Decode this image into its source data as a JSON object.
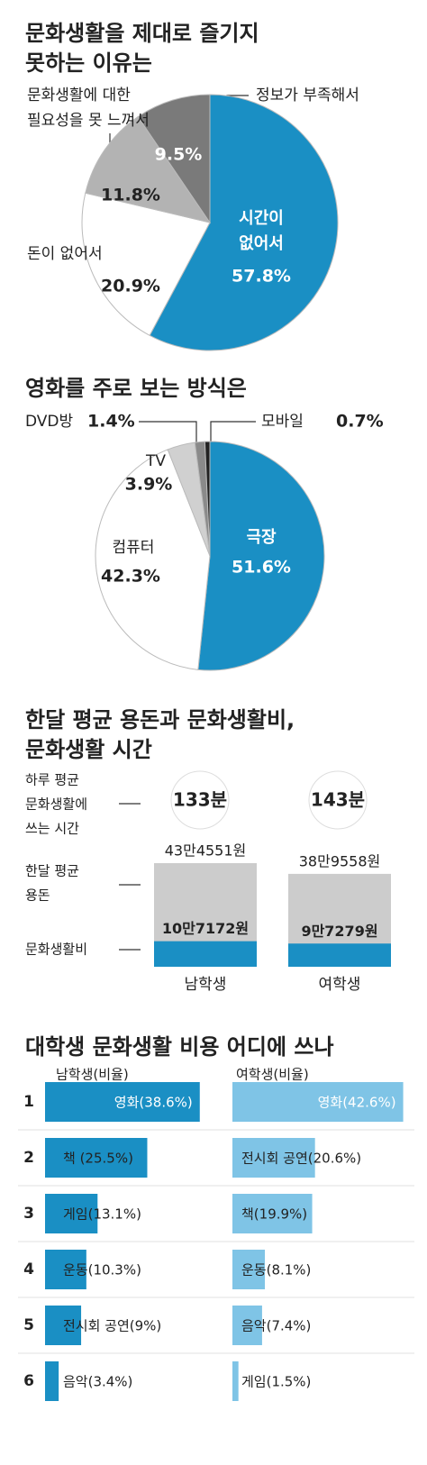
{
  "chart_data": [
    {
      "type": "pie",
      "title": [
        "문화생활을 제대로 즐기지",
        "못하는 이유는"
      ],
      "categories": [
        [
          "시간이",
          "없어서"
        ],
        [
          "돈이 없어서"
        ],
        [
          "문화생활에 대한",
          "필요성을 못 느껴서"
        ],
        [
          "정보가 부족해서"
        ]
      ],
      "values": [
        57.8,
        20.9,
        11.8,
        9.5
      ],
      "value_labels": [
        "57.8%",
        "20.9%",
        "11.8%",
        "9.5%"
      ],
      "colors": [
        "#1a8fc4",
        "#ffffff",
        "#b3b3b3",
        "#7a7a7a"
      ]
    },
    {
      "type": "pie",
      "title": [
        "영화를 주로 보는 방식은"
      ],
      "categories": [
        [
          "극장"
        ],
        [
          "컴퓨터"
        ],
        [
          "TV"
        ],
        [
          "DVD방"
        ],
        [
          "모바일"
        ]
      ],
      "values": [
        51.6,
        42.3,
        3.9,
        1.4,
        0.7
      ],
      "value_labels": [
        "51.6%",
        "42.3%",
        "3.9%",
        "1.4%",
        "0.7%"
      ],
      "colors": [
        "#1a8fc4",
        "#ffffff",
        "#d0d0d0",
        "#8a8a8a",
        "#222222"
      ]
    },
    {
      "type": "bar",
      "title": [
        "한달 평균 용돈과 문화생활비,",
        "문화생활 시간"
      ],
      "categories": [
        "남학생",
        "여학생"
      ],
      "series": [
        {
          "name": [
            "하루 평균",
            "문화생활에",
            "쓰는 시간"
          ],
          "values": [
            133,
            143
          ],
          "value_labels": [
            "133분",
            "143분"
          ],
          "color": "#ffffff"
        },
        {
          "name": [
            "한달 평균",
            "용돈"
          ],
          "values": [
            434551,
            389558
          ],
          "value_labels": [
            "43만4551원",
            "38만9558원"
          ],
          "color": "#cccccc"
        },
        {
          "name": [
            "문화생활비"
          ],
          "values": [
            107172,
            97279
          ],
          "value_labels": [
            "10만7172원",
            "9만7279원"
          ],
          "color": "#1a8fc4"
        }
      ]
    },
    {
      "type": "hbar",
      "title": [
        "대학생 문화생활 비용 어디에 쓰나"
      ],
      "categories": [
        "1",
        "2",
        "3",
        "4",
        "5",
        "6"
      ],
      "panels": [
        {
          "name": "남학생(비율)",
          "color": "#1a8fc4",
          "values": [
            38.6,
            25.5,
            13.1,
            10.3,
            9,
            3.4
          ],
          "value_labels": [
            "영화(38.6%)",
            "책 (25.5%)",
            "게임(13.1%)",
            "운동(10.3%)",
            "전시회 공연(9%)",
            "음악(3.4%)"
          ]
        },
        {
          "name": "여학생(비율)",
          "color": "#7fc4e6",
          "values": [
            42.6,
            20.6,
            19.9,
            8.1,
            7.4,
            1.5
          ],
          "value_labels": [
            "영화(42.6%)",
            "전시회 공연(20.6%)",
            "책(19.9%)",
            "운동(8.1%)",
            "음악(7.4%)",
            "게임(1.5%)"
          ]
        }
      ]
    }
  ]
}
